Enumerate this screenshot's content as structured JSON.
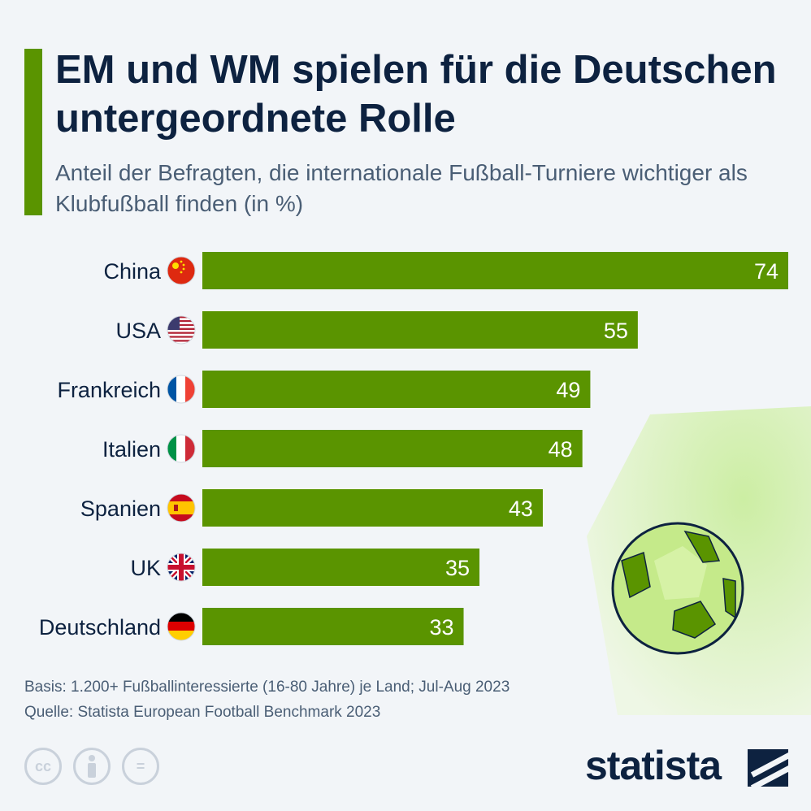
{
  "title": "EM und WM spielen für die Deutschen untergeordnete Rolle",
  "subtitle": "Anteil der Befragten, die internationale Fußball-Turniere wichtiger als Klubfußball finden (in %)",
  "colors": {
    "accent": "#5a9400",
    "bar": "#5a9400",
    "text": "#0d2240",
    "muted": "#4a5e75"
  },
  "chart_data": {
    "type": "bar",
    "orientation": "horizontal",
    "categories": [
      "China",
      "USA",
      "Frankreich",
      "Italien",
      "Spanien",
      "UK",
      "Deutschland"
    ],
    "values": [
      74,
      55,
      49,
      48,
      43,
      35,
      33
    ],
    "flags": [
      "china-flag-icon",
      "usa-flag-icon",
      "france-flag-icon",
      "italy-flag-icon",
      "spain-flag-icon",
      "uk-flag-icon",
      "germany-flag-icon"
    ],
    "xlim": [
      0,
      74
    ],
    "grid": false,
    "legend": "none"
  },
  "footer": {
    "basis": "Basis: 1.200+ Fußballinteressierte (16-80 Jahre) je Land; Jul-Aug 2023",
    "source": "Quelle: Statista European Football Benchmark 2023"
  },
  "license_icons": [
    "cc-icon",
    "attribution-icon",
    "no-derivatives-icon"
  ],
  "license_labels": {
    "cc": "cc",
    "nd": "="
  },
  "brand": {
    "name": "statista"
  }
}
